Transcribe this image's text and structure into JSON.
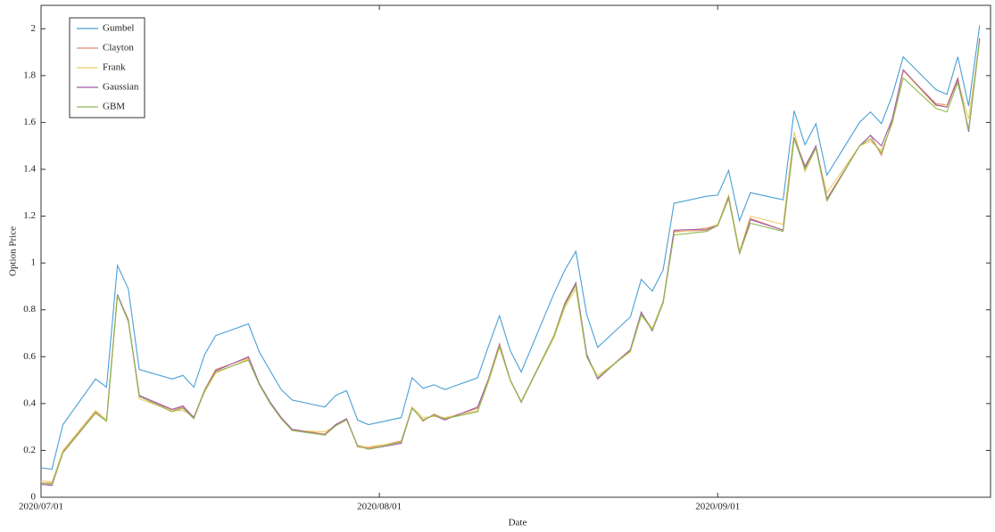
{
  "chart_data": {
    "type": "line",
    "x_label": "Date",
    "y_label": "Option Price",
    "x": [
      "2020/07/01",
      "2020/07/02",
      "2020/07/03",
      "2020/07/06",
      "2020/07/07",
      "2020/07/08",
      "2020/07/09",
      "2020/07/10",
      "2020/07/13",
      "2020/07/14",
      "2020/07/15",
      "2020/07/16",
      "2020/07/17",
      "2020/07/20",
      "2020/07/21",
      "2020/07/22",
      "2020/07/23",
      "2020/07/24",
      "2020/07/27",
      "2020/07/28",
      "2020/07/29",
      "2020/07/30",
      "2020/07/31",
      "2020/08/03",
      "2020/08/04",
      "2020/08/05",
      "2020/08/06",
      "2020/08/07",
      "2020/08/10",
      "2020/08/11",
      "2020/08/12",
      "2020/08/13",
      "2020/08/14",
      "2020/08/17",
      "2020/08/18",
      "2020/08/19",
      "2020/08/20",
      "2020/08/21",
      "2020/08/24",
      "2020/08/25",
      "2020/08/26",
      "2020/08/27",
      "2020/08/28",
      "2020/08/31",
      "2020/09/01",
      "2020/09/02",
      "2020/09/03",
      "2020/09/04",
      "2020/09/07",
      "2020/09/08",
      "2020/09/09",
      "2020/09/10",
      "2020/09/11",
      "2020/09/14",
      "2020/09/15",
      "2020/09/16",
      "2020/09/17",
      "2020/09/18",
      "2020/09/21",
      "2020/09/22",
      "2020/09/23",
      "2020/09/24",
      "2020/09/25"
    ],
    "xlim": [
      "2020/07/01",
      "2020/09/26"
    ],
    "xticks": [
      "2020/07/01",
      "2020/08/01",
      "2020/09/01"
    ],
    "ylim": [
      0,
      2.1
    ],
    "yticks": [
      0,
      0.2,
      0.4,
      0.6,
      0.8,
      1,
      1.2,
      1.4,
      1.6,
      1.8,
      2
    ],
    "legend_position": "upper-left",
    "series": [
      {
        "name": "Gumbel",
        "color": "#4a9fd4",
        "values": [
          0.125,
          0.12,
          0.31,
          0.505,
          0.47,
          0.99,
          0.89,
          0.545,
          0.505,
          0.52,
          0.47,
          0.61,
          0.69,
          0.74,
          0.62,
          0.54,
          0.46,
          0.415,
          0.385,
          0.435,
          0.455,
          0.33,
          0.31,
          0.34,
          0.51,
          0.465,
          0.48,
          0.46,
          0.51,
          0.645,
          0.775,
          0.625,
          0.535,
          0.87,
          0.97,
          1.05,
          0.78,
          0.64,
          0.77,
          0.93,
          0.88,
          0.97,
          1.255,
          1.285,
          1.29,
          1.395,
          1.18,
          1.3,
          1.27,
          1.65,
          1.505,
          1.595,
          1.375,
          1.6,
          1.645,
          1.595,
          1.715,
          1.88,
          1.74,
          1.72,
          1.88,
          1.67,
          2.015
        ]
      },
      {
        "name": "Clayton",
        "color": "#e4886a",
        "values": [
          0.06,
          0.06,
          0.195,
          0.365,
          0.33,
          0.865,
          0.755,
          0.435,
          0.37,
          0.385,
          0.34,
          0.46,
          0.545,
          0.595,
          0.485,
          0.405,
          0.34,
          0.29,
          0.27,
          0.31,
          0.335,
          0.215,
          0.21,
          0.24,
          0.385,
          0.325,
          0.355,
          0.335,
          0.38,
          0.505,
          0.655,
          0.5,
          0.41,
          0.69,
          0.83,
          0.915,
          0.6,
          0.51,
          0.63,
          0.785,
          0.72,
          0.83,
          1.135,
          1.14,
          1.16,
          1.28,
          1.05,
          1.19,
          1.14,
          1.535,
          1.415,
          1.495,
          1.275,
          1.5,
          1.545,
          1.46,
          1.61,
          1.82,
          1.68,
          1.675,
          1.79,
          1.565,
          1.955
        ]
      },
      {
        "name": "Frank",
        "color": "#efcc6a",
        "values": [
          0.07,
          0.065,
          0.2,
          0.37,
          0.33,
          0.86,
          0.76,
          0.42,
          0.37,
          0.37,
          0.345,
          0.45,
          0.53,
          0.59,
          0.48,
          0.4,
          0.335,
          0.285,
          0.28,
          0.305,
          0.33,
          0.22,
          0.215,
          0.235,
          0.385,
          0.34,
          0.345,
          0.34,
          0.37,
          0.49,
          0.64,
          0.495,
          0.41,
          0.68,
          0.81,
          0.89,
          0.6,
          0.52,
          0.62,
          0.775,
          0.72,
          0.84,
          1.13,
          1.15,
          1.165,
          1.29,
          1.05,
          1.2,
          1.165,
          1.56,
          1.39,
          1.49,
          1.3,
          1.5,
          1.52,
          1.48,
          1.595,
          1.82,
          1.67,
          1.675,
          1.78,
          1.615,
          1.95
        ]
      },
      {
        "name": "Gaussian",
        "color": "#a25aa8",
        "values": [
          0.055,
          0.05,
          0.19,
          0.36,
          0.325,
          0.865,
          0.755,
          0.435,
          0.375,
          0.39,
          0.34,
          0.455,
          0.54,
          0.6,
          0.485,
          0.405,
          0.34,
          0.29,
          0.265,
          0.31,
          0.335,
          0.22,
          0.205,
          0.23,
          0.38,
          0.33,
          0.35,
          0.33,
          0.385,
          0.505,
          0.65,
          0.5,
          0.405,
          0.69,
          0.825,
          0.915,
          0.61,
          0.505,
          0.63,
          0.79,
          0.71,
          0.83,
          1.14,
          1.145,
          1.16,
          1.28,
          1.04,
          1.185,
          1.14,
          1.535,
          1.41,
          1.5,
          1.27,
          1.5,
          1.545,
          1.5,
          1.615,
          1.825,
          1.675,
          1.665,
          1.785,
          1.56,
          1.96
        ]
      },
      {
        "name": "GBM",
        "color": "#8cba52",
        "values": [
          0.06,
          0.055,
          0.19,
          0.36,
          0.325,
          0.86,
          0.75,
          0.43,
          0.365,
          0.38,
          0.335,
          0.455,
          0.535,
          0.585,
          0.48,
          0.4,
          0.335,
          0.285,
          0.265,
          0.305,
          0.33,
          0.22,
          0.205,
          0.235,
          0.38,
          0.33,
          0.35,
          0.335,
          0.365,
          0.5,
          0.645,
          0.5,
          0.405,
          0.69,
          0.82,
          0.905,
          0.6,
          0.51,
          0.625,
          0.78,
          0.715,
          0.83,
          1.12,
          1.135,
          1.16,
          1.275,
          1.04,
          1.17,
          1.135,
          1.53,
          1.4,
          1.49,
          1.265,
          1.5,
          1.53,
          1.47,
          1.6,
          1.79,
          1.66,
          1.645,
          1.77,
          1.57,
          1.95
        ]
      }
    ]
  }
}
